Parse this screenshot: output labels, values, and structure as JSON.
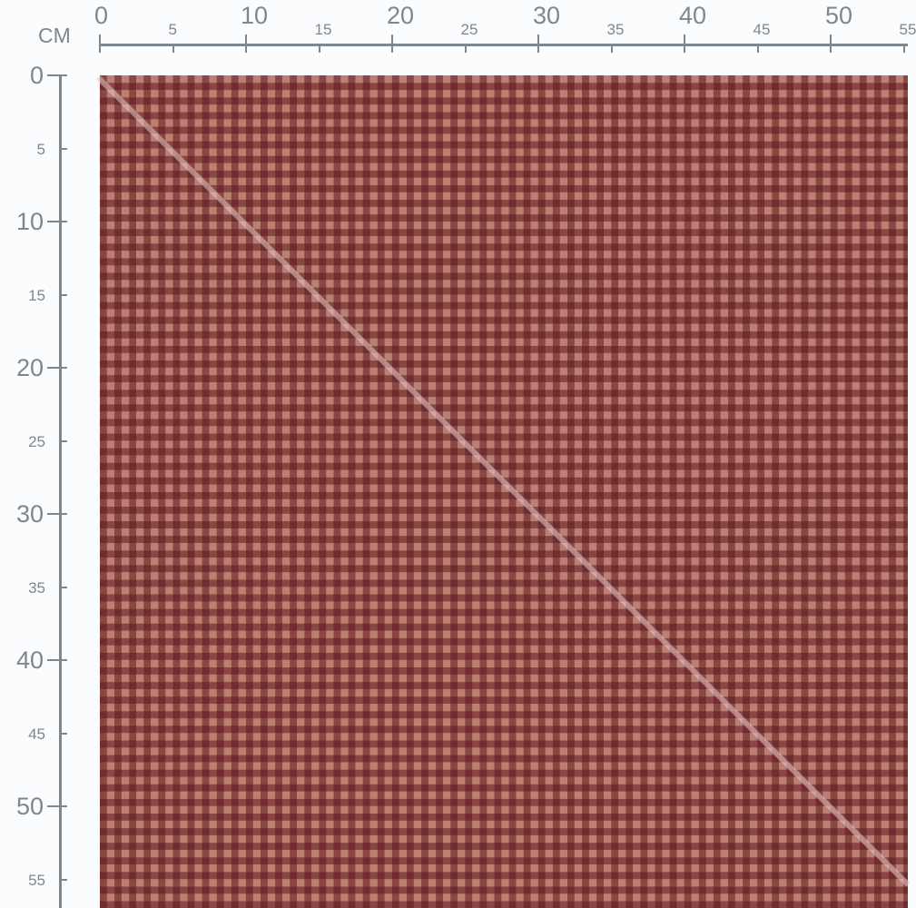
{
  "ruler": {
    "unit": "CM",
    "top_labels": [
      "0",
      "5",
      "10",
      "15",
      "20",
      "25",
      "30",
      "35",
      "40",
      "45",
      "50",
      "55"
    ],
    "left_labels": [
      "0",
      "5",
      "10",
      "15",
      "20",
      "25",
      "30",
      "35",
      "40",
      "45",
      "50",
      "55"
    ],
    "color": "#7d8791"
  },
  "swatch": {
    "pattern": "gingham check",
    "check_size_cm": 1,
    "colors": {
      "dark": "#5a1e22",
      "light": "#c99482"
    }
  }
}
